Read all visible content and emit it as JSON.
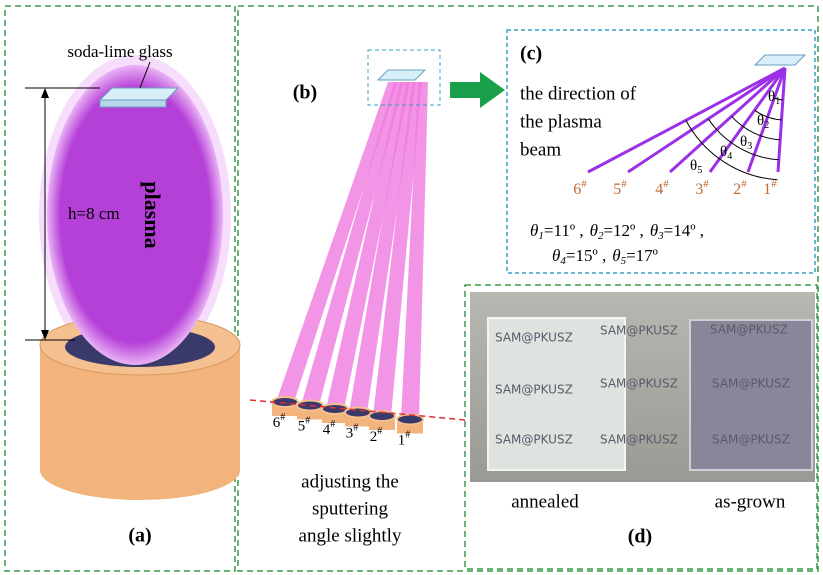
{
  "panel_a": {
    "label": "(a)",
    "substrate": "soda-lime glass",
    "plasma": "plasma",
    "height": "h=8 cm"
  },
  "panel_b": {
    "label": "(b)",
    "targets": [
      {
        "number": "6",
        "mark": "#"
      },
      {
        "number": "5",
        "mark": "#"
      },
      {
        "number": "4",
        "mark": "#"
      },
      {
        "number": "3",
        "mark": "#"
      },
      {
        "number": "2",
        "mark": "#"
      },
      {
        "number": "1",
        "mark": "#"
      }
    ],
    "caption": [
      "adjusting the",
      "sputtering",
      "angle slightly"
    ]
  },
  "panel_c": {
    "label": "(c)",
    "caption": [
      "the direction of",
      "the plasma",
      "beam"
    ],
    "targets": [
      {
        "number": "6",
        "mark": "#"
      },
      {
        "number": "5",
        "mark": "#"
      },
      {
        "number": "4",
        "mark": "#"
      },
      {
        "number": "3",
        "mark": "#"
      },
      {
        "number": "2",
        "mark": "#"
      },
      {
        "number": "1",
        "mark": "#"
      }
    ],
    "angles": [
      {
        "symbol": "θ",
        "index": "1"
      },
      {
        "symbol": "θ",
        "index": "2"
      },
      {
        "symbol": "θ",
        "index": "3"
      },
      {
        "symbol": "θ",
        "index": "4"
      },
      {
        "symbol": "θ",
        "index": "5"
      }
    ],
    "equations": [
      [
        {
          "symbol": "θ",
          "index": "1",
          "value": "=11º ,"
        },
        {
          "symbol": "θ",
          "index": "2",
          "value": "=12º ,"
        },
        {
          "symbol": "θ",
          "index": "3",
          "value": "=14º ,"
        }
      ],
      [
        {
          "symbol": "θ",
          "index": "4",
          "value": "=15º ,"
        },
        {
          "symbol": "θ",
          "index": "5",
          "value": "=17º"
        }
      ]
    ]
  },
  "panel_d": {
    "label": "(d)",
    "watermarks": [
      "SAM@PKUSZ",
      "SAM@PKUSZ",
      "SAM@PKUSZ",
      "SAM@PKUSZ",
      "SAM@PKUSZ",
      "SAM@PKUSZ",
      "SAM@PKUSZ",
      "SAM@PKUSZ",
      "SAM@PKUSZ"
    ],
    "samples": [
      "annealed",
      "as-grown"
    ]
  }
}
